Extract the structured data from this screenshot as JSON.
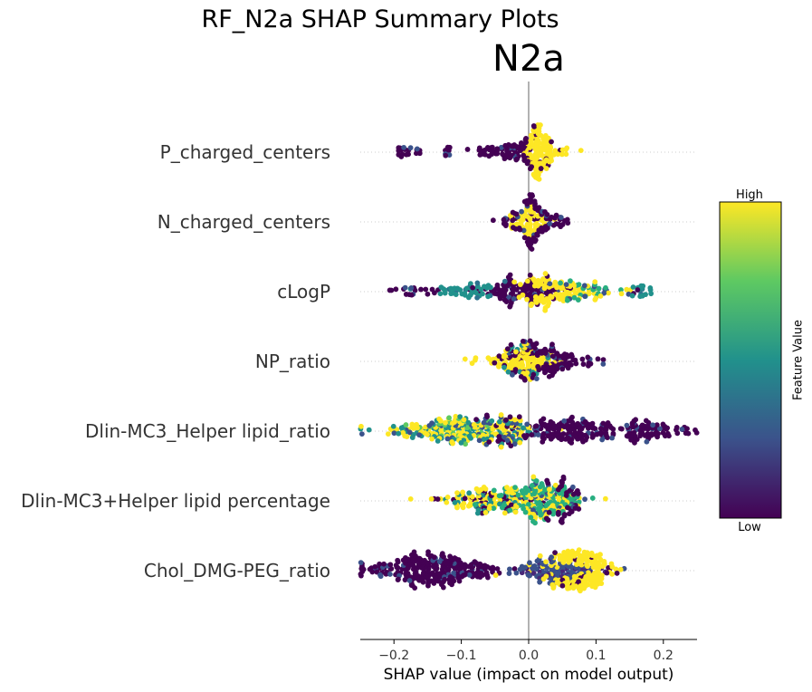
{
  "figure": {
    "suptitle": "RF_N2a SHAP Summary Plots",
    "subtitle": "N2a"
  },
  "colorbar": {
    "high_label": "High",
    "low_label": "Low",
    "label": "Feature Value",
    "colors": [
      "#440154",
      "#3b528b",
      "#21918c",
      "#5ec962",
      "#fde725"
    ]
  },
  "chart_data": {
    "type": "scatter",
    "subtype": "shap-beeswarm",
    "xlabel": "SHAP value (impact on model output)",
    "xlim": [
      -0.25,
      0.25
    ],
    "xticks": [
      -0.2,
      -0.1,
      0.0,
      0.1,
      0.2
    ],
    "xtick_labels": [
      "−0.2",
      "−0.1",
      "0.0",
      "0.1",
      "0.2"
    ],
    "zero_line": 0.0,
    "features": [
      {
        "name": "P_charged_centers",
        "n": 220,
        "spread": 0.04,
        "clusters": [
          {
            "center": 0.015,
            "sd": 0.012,
            "weight": 0.55,
            "color": "high"
          },
          {
            "center": -0.03,
            "sd": 0.025,
            "weight": 0.3,
            "color": "low"
          },
          {
            "center": -0.18,
            "sd": 0.012,
            "weight": 0.08,
            "color": "low"
          },
          {
            "center": -0.12,
            "sd": 0.004,
            "weight": 0.03,
            "color": "low"
          },
          {
            "center": 0.05,
            "sd": 0.015,
            "weight": 0.04,
            "color": "high"
          }
        ]
      },
      {
        "name": "N_charged_centers",
        "n": 160,
        "spread": 0.035,
        "clusters": [
          {
            "center": 0.0,
            "sd": 0.012,
            "weight": 0.5,
            "color": "high"
          },
          {
            "center": 0.0,
            "sd": 0.02,
            "weight": 0.4,
            "color": "low"
          },
          {
            "center": 0.04,
            "sd": 0.01,
            "weight": 0.1,
            "color": "low"
          }
        ]
      },
      {
        "name": "cLogP",
        "n": 320,
        "spread": 0.045,
        "clusters": [
          {
            "center": -0.02,
            "sd": 0.03,
            "weight": 0.3,
            "color": "low"
          },
          {
            "center": -0.09,
            "sd": 0.03,
            "weight": 0.15,
            "color": "mid"
          },
          {
            "center": 0.03,
            "sd": 0.025,
            "weight": 0.3,
            "color": "high"
          },
          {
            "center": 0.08,
            "sd": 0.035,
            "weight": 0.15,
            "color": "midhigh"
          },
          {
            "center": -0.17,
            "sd": 0.02,
            "weight": 0.05,
            "color": "low"
          },
          {
            "center": 0.165,
            "sd": 0.01,
            "weight": 0.05,
            "color": "mid"
          }
        ]
      },
      {
        "name": "NP_ratio",
        "n": 240,
        "spread": 0.04,
        "clusters": [
          {
            "center": -0.01,
            "sd": 0.025,
            "weight": 0.35,
            "color": "high"
          },
          {
            "center": 0.0,
            "sd": 0.02,
            "weight": 0.3,
            "color": "mixed"
          },
          {
            "center": 0.03,
            "sd": 0.025,
            "weight": 0.3,
            "color": "low"
          },
          {
            "center": 0.09,
            "sd": 0.015,
            "weight": 0.05,
            "color": "low"
          }
        ]
      },
      {
        "name": "Dlin-MC3_Helper lipid_ratio",
        "n": 520,
        "spread": 0.06,
        "clusters": [
          {
            "center": -0.11,
            "sd": 0.045,
            "weight": 0.4,
            "color": "mixed-high"
          },
          {
            "center": -0.03,
            "sd": 0.02,
            "weight": 0.15,
            "color": "mixed"
          },
          {
            "center": 0.05,
            "sd": 0.04,
            "weight": 0.25,
            "color": "low"
          },
          {
            "center": 0.17,
            "sd": 0.04,
            "weight": 0.2,
            "color": "low"
          }
        ]
      },
      {
        "name": "Dlin-MC3+Helper lipid percentage",
        "n": 360,
        "spread": 0.045,
        "clusters": [
          {
            "center": -0.07,
            "sd": 0.035,
            "weight": 0.35,
            "color": "lowhigh"
          },
          {
            "center": 0.02,
            "sd": 0.03,
            "weight": 0.55,
            "color": "midhigh"
          },
          {
            "center": 0.055,
            "sd": 0.015,
            "weight": 0.1,
            "color": "low"
          }
        ]
      },
      {
        "name": "Chol_DMG-PEG_ratio",
        "n": 560,
        "spread": 0.055,
        "clusters": [
          {
            "center": -0.14,
            "sd": 0.05,
            "weight": 0.48,
            "color": "low"
          },
          {
            "center": 0.035,
            "sd": 0.03,
            "weight": 0.22,
            "color": "lowmid"
          },
          {
            "center": 0.08,
            "sd": 0.025,
            "weight": 0.3,
            "color": "high"
          }
        ]
      }
    ]
  }
}
